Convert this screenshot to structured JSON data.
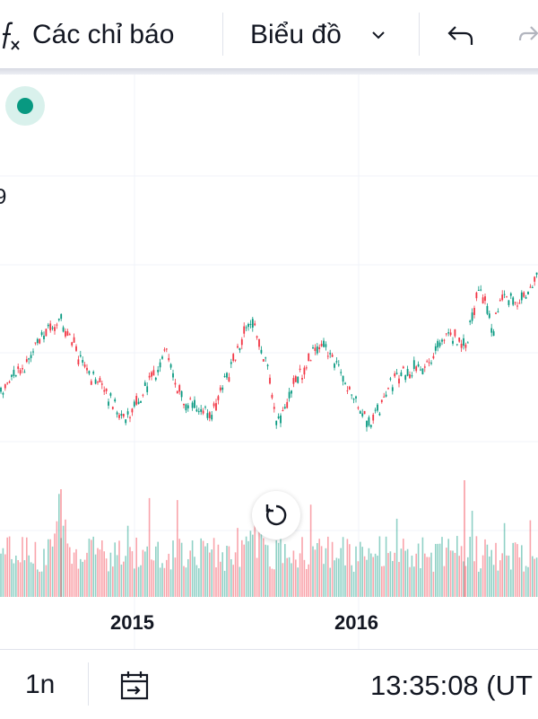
{
  "toolbar": {
    "fx_icon": "fx-icon",
    "indicators_label": "Các chỉ báo",
    "chart_label": "Biểu đồ",
    "dropdown_icon": "chevron-down-icon",
    "undo_icon": "undo-icon",
    "redo_icon": "redo-icon"
  },
  "status_dot": {
    "color": "#089981"
  },
  "price_scale_partial": "9",
  "x_axis": {
    "labels": [
      "2015",
      "2016"
    ]
  },
  "reset_button": {
    "icon": "reset-rotate-icon"
  },
  "bottom_bar": {
    "interval_label": "1n",
    "date_range_icon": "calendar-goto-icon",
    "clock_text": "13:35:08 (UT"
  },
  "colors": {
    "up": "#089981",
    "down": "#f23645",
    "grid": "#f0f3fa"
  },
  "chart_data": {
    "type": "candlestick",
    "x": [
      "2014-06",
      "2014-09",
      "2015-01",
      "2015-04",
      "2015-07",
      "2015-08",
      "2015-10",
      "2015-12",
      "2016-02",
      "2016-05",
      "2016-08",
      "2016-10"
    ],
    "close_trend": [
      410,
      352,
      468,
      398,
      450,
      356,
      470,
      430,
      396,
      460,
      320,
      306
    ],
    "x_ticks": [
      "2015",
      "2016"
    ],
    "volume": "shown"
  }
}
